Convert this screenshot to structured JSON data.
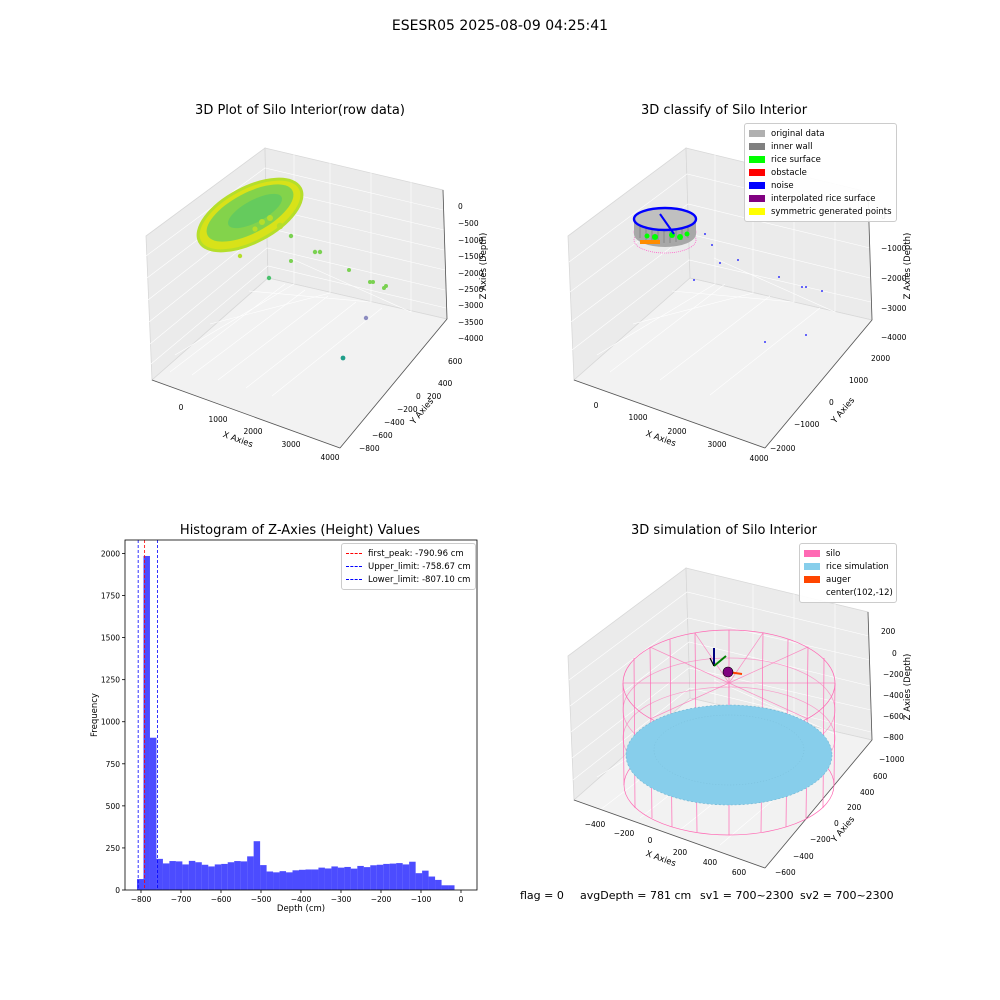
{
  "figure": {
    "suptitle": "ESESR05 2025-08-09 04:25:41"
  },
  "panel1": {
    "title": "3D Plot of Silo Interior(row data)",
    "xlabel": "X Axies",
    "ylabel": "Y Axies",
    "zlabel": "Z Axies (Depth)",
    "xticks": [
      "0",
      "1000",
      "2000",
      "3000",
      "4000"
    ],
    "yticks": [
      "600",
      "400",
      "200",
      "0",
      "−200",
      "−400",
      "−600",
      "−800"
    ],
    "zticks": [
      "0",
      "−500",
      "−1000",
      "−1500",
      "−2000",
      "−2500",
      "−3000",
      "−3500",
      "−4000"
    ]
  },
  "panel2": {
    "title": "3D classify of Silo Interior",
    "xlabel": "X Axies",
    "ylabel": "Y Axies",
    "zlabel": "Z Axies (Depth)",
    "xticks": [
      "0",
      "1000",
      "2000",
      "3000",
      "4000"
    ],
    "yticks": [
      "2000",
      "1000",
      "0",
      "−1000",
      "−2000"
    ],
    "zticks": [
      "0",
      "−1000",
      "−2000",
      "−3000",
      "−4000"
    ],
    "legend": [
      {
        "label": "original data",
        "color": "#b0b0b0"
      },
      {
        "label": "inner wall",
        "color": "#808080"
      },
      {
        "label": "rice surface",
        "color": "#00ff00"
      },
      {
        "label": "obstacle",
        "color": "#ff0000"
      },
      {
        "label": "noise",
        "color": "#0000ff"
      },
      {
        "label": "interpolated rice surface",
        "color": "#800080"
      },
      {
        "label": "symmetric generated points",
        "color": "#ffff00"
      }
    ]
  },
  "panel4": {
    "title": "3D simulation of Silo Interior",
    "xlabel": "X Axies",
    "ylabel": "Y Axies",
    "zlabel": "Z Axies (Depth)",
    "xticks": [
      "−400",
      "−200",
      "0",
      "200",
      "400",
      "600"
    ],
    "yticks": [
      "600",
      "400",
      "200",
      "0",
      "−200",
      "−400",
      "−600"
    ],
    "zticks": [
      "200",
      "0",
      "−200",
      "−400",
      "−600",
      "−800",
      "−1000"
    ],
    "legend": [
      {
        "label": "silo",
        "color": "#ff69b4"
      },
      {
        "label": "rice simulation",
        "color": "#87ceeb"
      },
      {
        "label": "auger",
        "color": "#ff4500"
      },
      {
        "label": "center(102,-12)",
        "color": ""
      }
    ]
  },
  "info": {
    "flag": "flag = 0",
    "avg_depth": "avgDepth = 781 cm",
    "sv1": "sv1 = 700~2300",
    "sv2": "sv2 = 700~2300"
  },
  "chart_data": [
    {
      "type": "scatter",
      "title": "3D Plot of Silo Interior(row data)",
      "projection": "3d",
      "xlabel": "X Axies",
      "ylabel": "Y Axies",
      "zlabel": "Z Axies (Depth)",
      "xlim": [
        -500,
        4200
      ],
      "ylim": [
        -850,
        700
      ],
      "zlim": [
        -4000,
        200
      ],
      "grid": true,
      "colormap": "viridis"
    },
    {
      "type": "scatter",
      "title": "3D classify of Silo Interior",
      "projection": "3d",
      "xlabel": "X Axies",
      "ylabel": "Y Axies",
      "zlabel": "Z Axies (Depth)",
      "xlim": [
        -500,
        4200
      ],
      "ylim": [
        -2200,
        2200
      ],
      "zlim": [
        -4000,
        200
      ],
      "grid": true,
      "legend_position": "top-right",
      "series": [
        {
          "name": "original data",
          "color": "#b0b0b0"
        },
        {
          "name": "inner wall",
          "color": "#808080"
        },
        {
          "name": "rice surface",
          "color": "#00ff00"
        },
        {
          "name": "obstacle",
          "color": "#ff0000"
        },
        {
          "name": "noise",
          "color": "#0000ff"
        },
        {
          "name": "interpolated rice surface",
          "color": "#800080"
        },
        {
          "name": "symmetric generated points",
          "color": "#ffff00"
        }
      ]
    },
    {
      "type": "bar",
      "title": "Histogram of Z-Axies (Height) Values",
      "xlabel": "Depth (cm)",
      "ylabel": "Frequency",
      "xlim": [
        -840,
        40
      ],
      "ylim": [
        0,
        2080
      ],
      "xticks": [
        -800,
        -700,
        -600,
        -500,
        -400,
        -300,
        -200,
        -100,
        0
      ],
      "yticks": [
        0,
        250,
        500,
        750,
        1000,
        1250,
        1500,
        1750,
        2000
      ],
      "bar_color": "#0000ff",
      "bin_start": -810,
      "bin_width": 16.2,
      "values": [
        65,
        1985,
        905,
        185,
        158,
        172,
        170,
        152,
        173,
        165,
        150,
        140,
        152,
        155,
        165,
        172,
        170,
        200,
        290,
        148,
        110,
        105,
        112,
        105,
        117,
        120,
        122,
        122,
        133,
        128,
        140,
        133,
        137,
        127,
        143,
        136,
        147,
        150,
        155,
        157,
        160,
        152,
        168,
        100,
        115,
        80,
        60,
        28,
        28
      ],
      "vlines": [
        {
          "label": "first_peak: -790.96 cm",
          "x": -790.96,
          "color": "#ff0000",
          "style": "dashed"
        },
        {
          "label": "Upper_limit: -758.67 cm",
          "x": -758.67,
          "color": "#0000ff",
          "style": "dashed"
        },
        {
          "label": "Lower_limit: -807.10 cm",
          "x": -807.1,
          "color": "#0000ff",
          "style": "dashed"
        }
      ],
      "legend_position": "top-right"
    },
    {
      "type": "scatter",
      "title": "3D simulation of Silo Interior",
      "projection": "3d",
      "xlabel": "X Axies",
      "ylabel": "Y Axies",
      "zlabel": "Z Axies (Depth)",
      "xlim": [
        -500,
        700
      ],
      "ylim": [
        -650,
        650
      ],
      "zlim": [
        -1000,
        300
      ],
      "grid": true,
      "legend_position": "top-right",
      "series": [
        {
          "name": "silo",
          "color": "#ff69b4"
        },
        {
          "name": "rice simulation",
          "color": "#87ceeb"
        },
        {
          "name": "auger",
          "color": "#ff4500"
        },
        {
          "name": "center(102,-12)"
        }
      ]
    }
  ]
}
